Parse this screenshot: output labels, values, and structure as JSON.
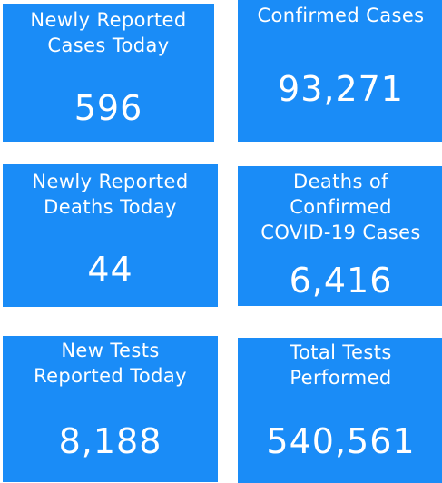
{
  "colors": {
    "tile_background": "#1a8cf7",
    "tile_text": "#ffffff"
  },
  "tiles": [
    {
      "label": "Newly Reported\nCases Today",
      "value": "596"
    },
    {
      "label": "Confirmed Cases",
      "value": "93,271"
    },
    {
      "label": "Newly Reported\nDeaths Today",
      "value": "44"
    },
    {
      "label": "Deaths of\nConfirmed\nCOVID-19 Cases",
      "value": "6,416"
    },
    {
      "label": "New Tests\nReported Today",
      "value": "8,188"
    },
    {
      "label": "Total Tests\nPerformed",
      "value": "540,561"
    }
  ]
}
